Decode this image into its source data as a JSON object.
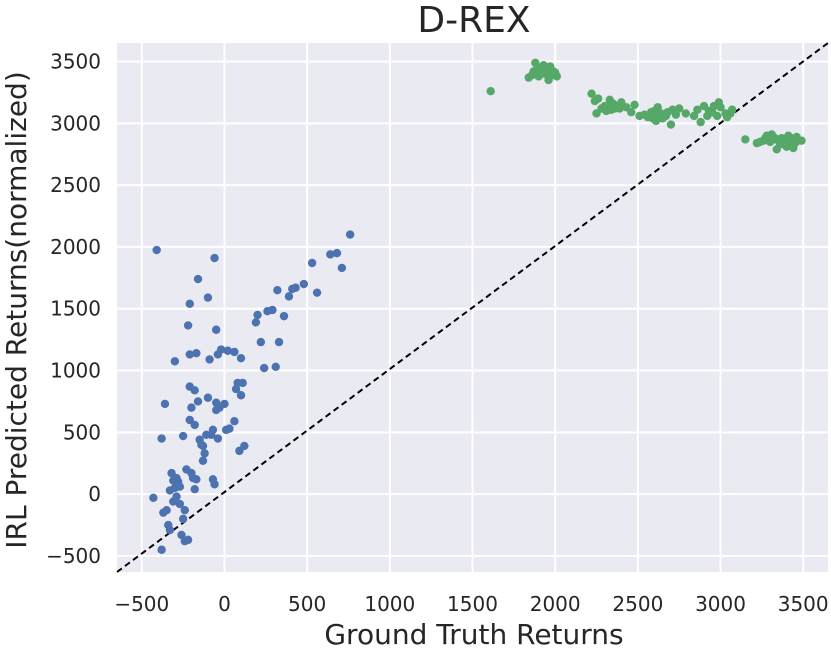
{
  "chart_data": {
    "type": "scatter",
    "title": "D-REX",
    "xlabel": "Ground Truth Returns",
    "ylabel": "IRL Predicted Returns(normalized)",
    "xlim": [
      -650,
      3650
    ],
    "ylim": [
      -630,
      3650
    ],
    "xticks": [
      -500,
      0,
      500,
      1000,
      1500,
      2000,
      2500,
      3000,
      3500
    ],
    "yticks": [
      -500,
      0,
      500,
      1000,
      1500,
      2000,
      2500,
      3000,
      3500
    ],
    "xtick_labels": [
      "−500",
      "0",
      "500",
      "1000",
      "1500",
      "2000",
      "2500",
      "3000",
      "3500"
    ],
    "ytick_labels": [
      "−500",
      "0",
      "500",
      "1000",
      "1500",
      "2000",
      "2500",
      "3000",
      "3500"
    ],
    "grid": true,
    "background": "#eaeaf2",
    "reference_line": {
      "style": "dashed",
      "color": "#000000",
      "from": [
        -650,
        -630
      ],
      "to": [
        3650,
        3650
      ]
    },
    "series": [
      {
        "color": "#4c72b0",
        "points": [
          [
            -430,
            -30
          ],
          [
            -410,
            1975
          ],
          [
            -380,
            -450
          ],
          [
            -380,
            450
          ],
          [
            -370,
            -150
          ],
          [
            -360,
            730
          ],
          [
            -350,
            -130
          ],
          [
            -340,
            -250
          ],
          [
            -330,
            -290
          ],
          [
            -330,
            30
          ],
          [
            -320,
            170
          ],
          [
            -310,
            110
          ],
          [
            -310,
            -60
          ],
          [
            -300,
            50
          ],
          [
            -300,
            1075
          ],
          [
            -290,
            -20
          ],
          [
            -290,
            130
          ],
          [
            -280,
            100
          ],
          [
            -270,
            -80
          ],
          [
            -270,
            60
          ],
          [
            -260,
            -330
          ],
          [
            -250,
            -200
          ],
          [
            -250,
            470
          ],
          [
            -240,
            -380
          ],
          [
            -240,
            -130
          ],
          [
            -230,
            200
          ],
          [
            -220,
            -370
          ],
          [
            -220,
            1365
          ],
          [
            -210,
            600
          ],
          [
            -210,
            1540
          ],
          [
            -210,
            1130
          ],
          [
            -210,
            870
          ],
          [
            -200,
            700
          ],
          [
            -200,
            170
          ],
          [
            -190,
            130
          ],
          [
            -180,
            40
          ],
          [
            -180,
            560
          ],
          [
            -180,
            840
          ],
          [
            -170,
            1140
          ],
          [
            -170,
            120
          ],
          [
            -160,
            1740
          ],
          [
            -160,
            750
          ],
          [
            -150,
            440
          ],
          [
            -140,
            400
          ],
          [
            -130,
            270
          ],
          [
            -130,
            390
          ],
          [
            -120,
            330
          ],
          [
            -110,
            480
          ],
          [
            -100,
            1590
          ],
          [
            -100,
            780
          ],
          [
            -90,
            1090
          ],
          [
            -80,
            480
          ],
          [
            -70,
            520
          ],
          [
            -70,
            120
          ],
          [
            -60,
            80
          ],
          [
            -60,
            1910
          ],
          [
            -50,
            740
          ],
          [
            -50,
            1330
          ],
          [
            -50,
            680
          ],
          [
            -40,
            450
          ],
          [
            -40,
            1130
          ],
          [
            -30,
            700
          ],
          [
            -20,
            1170
          ],
          [
            0,
            730
          ],
          [
            10,
            520
          ],
          [
            20,
            1160
          ],
          [
            30,
            530
          ],
          [
            60,
            1150
          ],
          [
            60,
            590
          ],
          [
            70,
            850
          ],
          [
            80,
            900
          ],
          [
            90,
            350
          ],
          [
            100,
            1100
          ],
          [
            100,
            800
          ],
          [
            110,
            900
          ],
          [
            120,
            390
          ],
          [
            190,
            1390
          ],
          [
            200,
            1450
          ],
          [
            220,
            1230
          ],
          [
            240,
            1020
          ],
          [
            260,
            1480
          ],
          [
            290,
            1490
          ],
          [
            310,
            1030
          ],
          [
            320,
            1650
          ],
          [
            330,
            1230
          ],
          [
            360,
            1440
          ],
          [
            390,
            1600
          ],
          [
            410,
            1660
          ],
          [
            430,
            1670
          ],
          [
            480,
            1700
          ],
          [
            530,
            1870
          ],
          [
            560,
            1630
          ],
          [
            640,
            1940
          ],
          [
            680,
            1950
          ],
          [
            710,
            1830
          ],
          [
            760,
            2100
          ]
        ]
      },
      {
        "color": "#55a868",
        "points": [
          [
            1610,
            3260
          ],
          [
            1840,
            3370
          ],
          [
            1860,
            3390
          ],
          [
            1870,
            3420
          ],
          [
            1880,
            3490
          ],
          [
            1890,
            3440
          ],
          [
            1900,
            3380
          ],
          [
            1910,
            3450
          ],
          [
            1920,
            3410
          ],
          [
            1930,
            3470
          ],
          [
            1940,
            3400
          ],
          [
            1950,
            3430
          ],
          [
            1960,
            3350
          ],
          [
            1970,
            3460
          ],
          [
            1980,
            3390
          ],
          [
            1990,
            3420
          ],
          [
            2000,
            3410
          ],
          [
            2010,
            3380
          ],
          [
            2220,
            3240
          ],
          [
            2240,
            3180
          ],
          [
            2250,
            3080
          ],
          [
            2260,
            3200
          ],
          [
            2280,
            3120
          ],
          [
            2300,
            3140
          ],
          [
            2310,
            3100
          ],
          [
            2320,
            3130
          ],
          [
            2330,
            3190
          ],
          [
            2340,
            3110
          ],
          [
            2350,
            3160
          ],
          [
            2360,
            3120
          ],
          [
            2380,
            3140
          ],
          [
            2390,
            3120
          ],
          [
            2400,
            3170
          ],
          [
            2430,
            3130
          ],
          [
            2460,
            3090
          ],
          [
            2480,
            3150
          ],
          [
            2510,
            3060
          ],
          [
            2540,
            3070
          ],
          [
            2560,
            3050
          ],
          [
            2580,
            3090
          ],
          [
            2590,
            3040
          ],
          [
            2600,
            3100
          ],
          [
            2610,
            3020
          ],
          [
            2620,
            3130
          ],
          [
            2630,
            3060
          ],
          [
            2640,
            3080
          ],
          [
            2650,
            3040
          ],
          [
            2660,
            3070
          ],
          [
            2670,
            3060
          ],
          [
            2680,
            3090
          ],
          [
            2700,
            2990
          ],
          [
            2710,
            3110
          ],
          [
            2730,
            3070
          ],
          [
            2750,
            3120
          ],
          [
            2790,
            3080
          ],
          [
            2840,
            3060
          ],
          [
            2860,
            3110
          ],
          [
            2880,
            3010
          ],
          [
            2900,
            3140
          ],
          [
            2920,
            3060
          ],
          [
            2930,
            3100
          ],
          [
            2950,
            3090
          ],
          [
            2960,
            3140
          ],
          [
            2980,
            3060
          ],
          [
            2990,
            3170
          ],
          [
            3000,
            3130
          ],
          [
            3030,
            3080
          ],
          [
            3040,
            3050
          ],
          [
            3060,
            3080
          ],
          [
            3070,
            3110
          ],
          [
            3150,
            2870
          ],
          [
            3220,
            2840
          ],
          [
            3240,
            2850
          ],
          [
            3260,
            2860
          ],
          [
            3270,
            2880
          ],
          [
            3280,
            2900
          ],
          [
            3290,
            2870
          ],
          [
            3300,
            2850
          ],
          [
            3310,
            2910
          ],
          [
            3320,
            2870
          ],
          [
            3330,
            2880
          ],
          [
            3340,
            2790
          ],
          [
            3350,
            2860
          ],
          [
            3360,
            2830
          ],
          [
            3370,
            2880
          ],
          [
            3380,
            2840
          ],
          [
            3390,
            2870
          ],
          [
            3400,
            2810
          ],
          [
            3410,
            2900
          ],
          [
            3420,
            2850
          ],
          [
            3430,
            2880
          ],
          [
            3440,
            2800
          ],
          [
            3450,
            2840
          ],
          [
            3460,
            2890
          ],
          [
            3470,
            2860
          ],
          [
            3490,
            2860
          ]
        ]
      }
    ]
  }
}
